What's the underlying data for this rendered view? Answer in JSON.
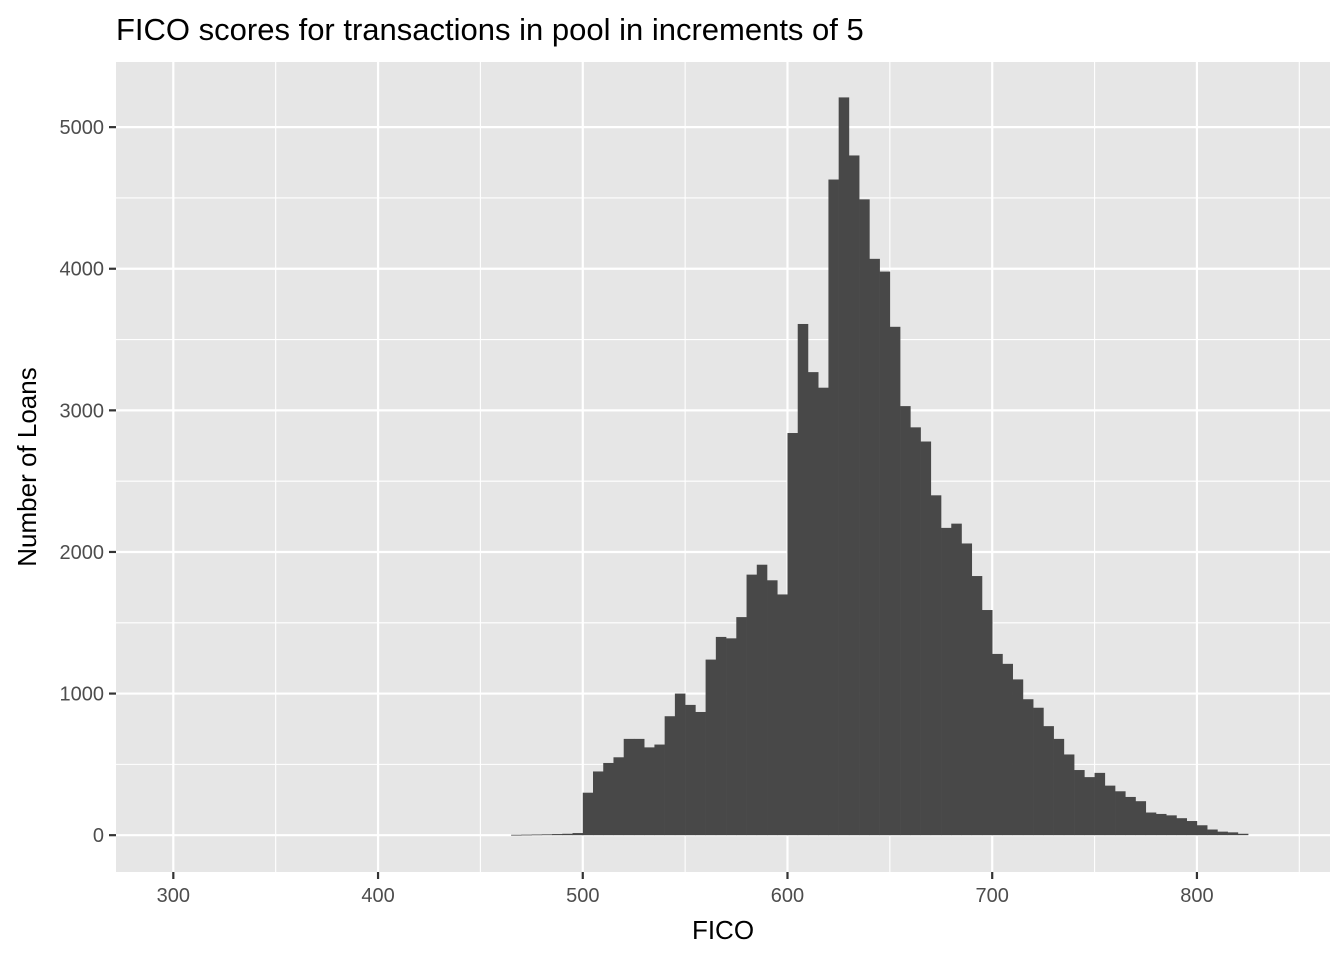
{
  "chart_data": {
    "type": "bar",
    "title": "FICO scores for transactions in pool in increments of 5",
    "xlabel": "FICO",
    "ylabel": "Number of Loans",
    "xlim": [
      272,
      865
    ],
    "ylim": [
      -260,
      5460
    ],
    "x_ticks": [
      300,
      400,
      500,
      600,
      700,
      800
    ],
    "y_ticks": [
      0,
      1000,
      2000,
      3000,
      4000,
      5000
    ],
    "x_tick_labels": [
      "300",
      "400",
      "500",
      "600",
      "700",
      "800"
    ],
    "y_tick_labels": [
      "0",
      "1000",
      "2000",
      "3000",
      "4000",
      "5000"
    ],
    "x_minor_gridlines": [
      350,
      450,
      550,
      650,
      750,
      850
    ],
    "y_minor_gridlines": [
      500,
      1500,
      2500,
      3500,
      4500
    ],
    "grid": true,
    "bin_width": 5,
    "bins_left_edge": [
      465,
      470,
      475,
      480,
      485,
      490,
      495,
      500,
      505,
      510,
      515,
      520,
      525,
      530,
      535,
      540,
      545,
      550,
      555,
      560,
      565,
      570,
      575,
      580,
      585,
      590,
      595,
      600,
      605,
      610,
      615,
      620,
      625,
      630,
      635,
      640,
      645,
      650,
      655,
      660,
      665,
      670,
      675,
      680,
      685,
      690,
      695,
      700,
      705,
      710,
      715,
      720,
      725,
      730,
      735,
      740,
      745,
      750,
      755,
      760,
      765,
      770,
      775,
      780,
      785,
      790,
      795,
      800,
      805,
      810,
      815,
      820
    ],
    "values": [
      3,
      4,
      5,
      6,
      8,
      10,
      15,
      300,
      450,
      510,
      550,
      680,
      680,
      620,
      640,
      840,
      1000,
      920,
      870,
      1240,
      1400,
      1390,
      1540,
      1840,
      1910,
      1800,
      1700,
      2840,
      3610,
      3270,
      3160,
      4630,
      5210,
      4800,
      4490,
      4070,
      3980,
      3590,
      3030,
      2880,
      2780,
      2400,
      2170,
      2200,
      2060,
      1830,
      1590,
      1280,
      1210,
      1100,
      960,
      900,
      770,
      680,
      570,
      460,
      410,
      440,
      350,
      310,
      270,
      240,
      160,
      150,
      140,
      120,
      100,
      70,
      40,
      25,
      20,
      10
    ]
  }
}
